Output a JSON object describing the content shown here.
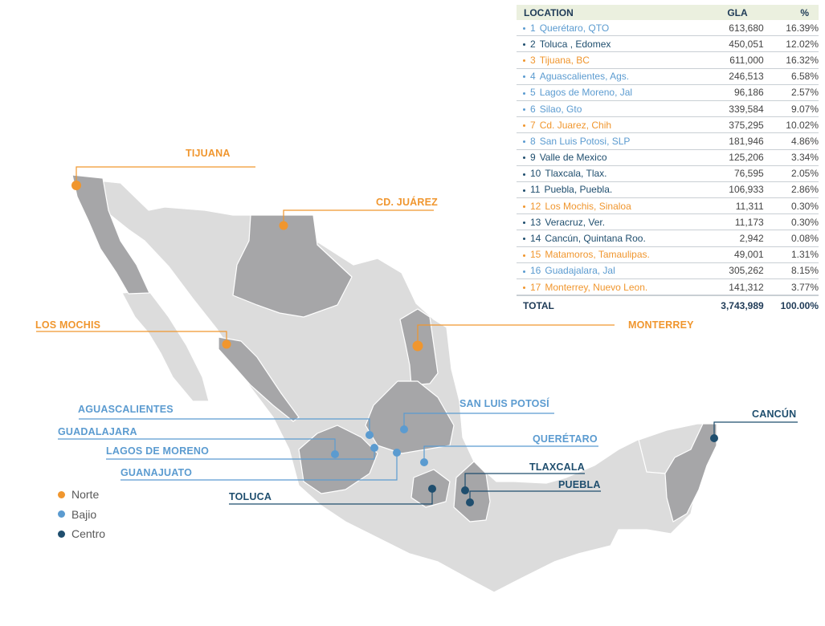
{
  "table": {
    "headers": {
      "location": "LOCATION",
      "gla": "GLA",
      "pct": "%"
    },
    "rows": [
      {
        "num": "1",
        "name": "Querétaro, QTO",
        "gla": "613,680",
        "pct": "16.39%",
        "region": "bajio"
      },
      {
        "num": "2",
        "name": "Toluca , Edomex",
        "gla": "450,051",
        "pct": "12.02%",
        "region": "centro"
      },
      {
        "num": "3",
        "name": "Tijuana, BC",
        "gla": "611,000",
        "pct": "16.32%",
        "region": "norte"
      },
      {
        "num": "4",
        "name": "Aguascalientes, Ags.",
        "gla": "246,513",
        "pct": "6.58%",
        "region": "bajio"
      },
      {
        "num": "5",
        "name": "Lagos de Moreno, Jal",
        "gla": "96,186",
        "pct": "2.57%",
        "region": "bajio"
      },
      {
        "num": "6",
        "name": "Silao, Gto",
        "gla": "339,584",
        "pct": "9.07%",
        "region": "bajio"
      },
      {
        "num": "7",
        "name": "Cd. Juarez, Chih",
        "gla": "375,295",
        "pct": "10.02%",
        "region": "norte"
      },
      {
        "num": "8",
        "name": "San Luis Potosi, SLP",
        "gla": "181,946",
        "pct": "4.86%",
        "region": "bajio"
      },
      {
        "num": "9",
        "name": "Valle de Mexico",
        "gla": "125,206",
        "pct": "3.34%",
        "region": "centro"
      },
      {
        "num": "10",
        "name": "Tlaxcala, Tlax.",
        "gla": "76,595",
        "pct": "2.05%",
        "region": "centro"
      },
      {
        "num": "11",
        "name": "Puebla, Puebla.",
        "gla": "106,933",
        "pct": "2.86%",
        "region": "centro"
      },
      {
        "num": "12",
        "name": "Los Mochis, Sinaloa",
        "gla": "11,311",
        "pct": "0.30%",
        "region": "norte"
      },
      {
        "num": "13",
        "name": "Veracruz, Ver.",
        "gla": "11,173",
        "pct": "0.30%",
        "region": "centro"
      },
      {
        "num": "14",
        "name": "Cancún, Quintana Roo.",
        "gla": "2,942",
        "pct": "0.08%",
        "region": "centro"
      },
      {
        "num": "15",
        "name": "Matamoros, Tamaulipas.",
        "gla": "49,001",
        "pct": "1.31%",
        "region": "norte"
      },
      {
        "num": "16",
        "name": "Guadajalara, Jal",
        "gla": "305,262",
        "pct": "8.15%",
        "region": "bajio"
      },
      {
        "num": "17",
        "name": "Monterrey, Nuevo Leon.",
        "gla": "141,312",
        "pct": "3.77%",
        "region": "norte"
      }
    ],
    "total": {
      "label": "TOTAL",
      "gla": "3,743,989",
      "pct": "100.00%"
    }
  },
  "legend": [
    {
      "label": "Norte",
      "color": "#f0962e"
    },
    {
      "label": "Bajio",
      "color": "#5b9bd0"
    },
    {
      "label": "Centro",
      "color": "#1f4e6e"
    }
  ],
  "map_labels": {
    "tijuana": "TIJUANA",
    "cd_juarez": "CD. JUÁREZ",
    "los_mochis": "LOS MOCHIS",
    "monterrey": "MONTERREY",
    "aguascalientes": "AGUASCALIENTES",
    "san_luis_potosi": "SAN LUIS POTOSÍ",
    "guadalajara": "GUADALAJARA",
    "queretaro": "QUERÉTARO",
    "lagos_de_moreno": "LAGOS DE MORENO",
    "guanajuato": "GUANAJUATO",
    "tlaxcala": "TLAXCALA",
    "puebla": "PUEBLA",
    "toluca": "TOLUCA",
    "cancun": "CANCÚN"
  },
  "colors": {
    "norte": "#f0962e",
    "bajio": "#5b9bd0",
    "centro": "#1f4e6e",
    "land_light": "#dcdcdc",
    "land_dark": "#a6a6a8",
    "header_bg": "#ebf0df"
  }
}
